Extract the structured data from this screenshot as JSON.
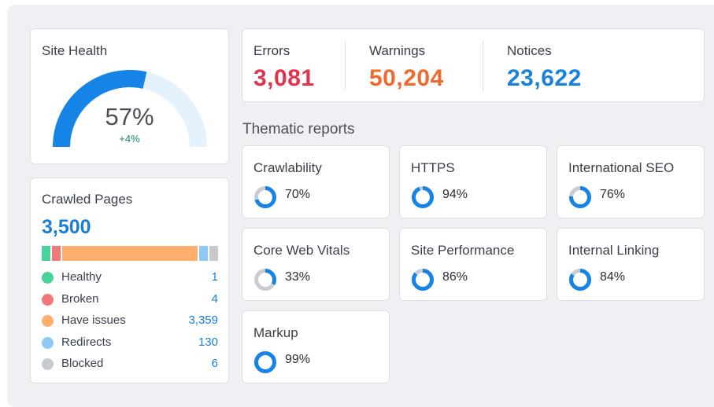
{
  "colors": {
    "blue": "#1584e6",
    "light_blue_track": "#e3f2fd",
    "donut_track": "#c9ccd2",
    "error": "#e5324c",
    "warning": "#ef6a2e",
    "notice": "#1a82d8"
  },
  "site_health": {
    "title": "Site Health",
    "value": "57%",
    "percent": 57,
    "delta": "+4%"
  },
  "crawled": {
    "title": "Crawled Pages",
    "total": "3,500",
    "segments": [
      {
        "name": "Healthy",
        "value": 1,
        "color": "#47d39a"
      },
      {
        "name": "Broken",
        "value": 4,
        "color": "#f0777a"
      },
      {
        "name": "Have issues",
        "value": 3359,
        "color": "#ffae6b"
      },
      {
        "name": "Redirects",
        "value": 130,
        "color": "#8dcaf5"
      },
      {
        "name": "Blocked",
        "value": 6,
        "color": "#c6c9ce"
      }
    ],
    "legend": [
      {
        "label": "Healthy",
        "value": "1"
      },
      {
        "label": "Broken",
        "value": "4"
      },
      {
        "label": "Have issues",
        "value": "3,359"
      },
      {
        "label": "Redirects",
        "value": "130"
      },
      {
        "label": "Blocked",
        "value": "6"
      }
    ]
  },
  "issues": {
    "errors_label": "Errors",
    "errors_value": "3,081",
    "warnings_label": "Warnings",
    "warnings_value": "50,204",
    "notices_label": "Notices",
    "notices_value": "23,622"
  },
  "thematic": {
    "title": "Thematic reports",
    "reports": [
      {
        "name": "Crawlability",
        "value": "70%",
        "percent": 70
      },
      {
        "name": "HTTPS",
        "value": "94%",
        "percent": 94
      },
      {
        "name": "International SEO",
        "value": "76%",
        "percent": 76
      },
      {
        "name": "Core Web Vitals",
        "value": "33%",
        "percent": 33
      },
      {
        "name": "Site Performance",
        "value": "86%",
        "percent": 86
      },
      {
        "name": "Internal Linking",
        "value": "84%",
        "percent": 84
      },
      {
        "name": "Markup",
        "value": "99%",
        "percent": 99
      }
    ]
  }
}
